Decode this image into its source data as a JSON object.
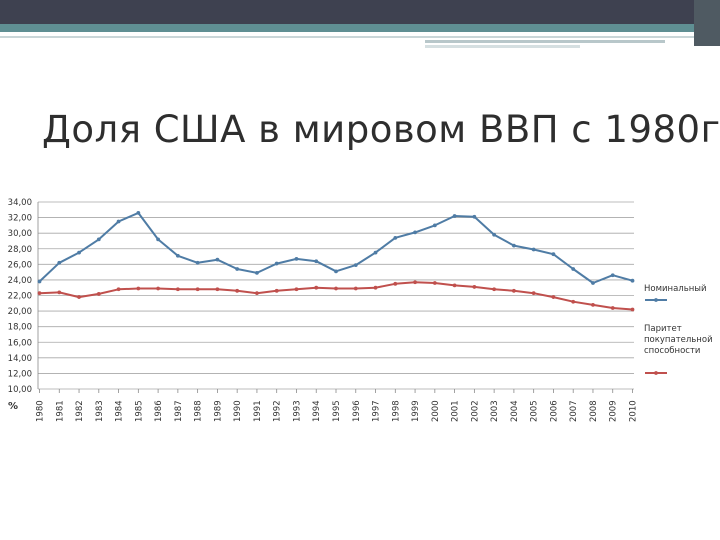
{
  "slide": {
    "title": "Доля США в мировом ВВП с 1980г"
  },
  "chart_data": {
    "type": "line",
    "title": "",
    "xlabel": "",
    "ylabel": "%",
    "ylim": [
      10,
      34
    ],
    "y_ticks": [
      "34,00",
      "32,00",
      "30,00",
      "28,00",
      "26,00",
      "24,00",
      "22,00",
      "20,00",
      "18,00",
      "16,00",
      "14,00",
      "12,00",
      "10,00"
    ],
    "x": [
      "1980",
      "1981",
      "1982",
      "1983",
      "1984",
      "1985",
      "1986",
      "1987",
      "1988",
      "1989",
      "1990",
      "1991",
      "1992",
      "1993",
      "1994",
      "1995",
      "1996",
      "1997",
      "1998",
      "1999",
      "2000",
      "2001",
      "2002",
      "2003",
      "2004",
      "2005",
      "2006",
      "2007",
      "2008",
      "2009",
      "2010"
    ],
    "grid": true,
    "legend_position": "right",
    "colors": {
      "nominal": "#4f7ca5",
      "ppp": "#c0504d"
    },
    "series": [
      {
        "name": "Номинальный",
        "values": [
          23.8,
          26.2,
          27.5,
          29.2,
          31.5,
          32.6,
          29.2,
          27.1,
          26.2,
          26.6,
          25.4,
          24.9,
          26.1,
          26.7,
          26.4,
          25.1,
          25.9,
          27.5,
          29.4,
          30.1,
          31.0,
          32.2,
          32.1,
          29.8,
          28.4,
          27.9,
          27.3,
          25.4,
          23.6,
          24.6,
          23.9
        ]
      },
      {
        "name": "Паритет покупательной способности",
        "values": [
          22.3,
          22.4,
          21.8,
          22.2,
          22.8,
          22.9,
          22.9,
          22.8,
          22.8,
          22.8,
          22.6,
          22.3,
          22.6,
          22.8,
          23.0,
          22.9,
          22.9,
          23.0,
          23.5,
          23.7,
          23.6,
          23.3,
          23.1,
          22.8,
          22.6,
          22.3,
          21.8,
          21.2,
          20.8,
          20.4,
          20.2
        ]
      }
    ]
  }
}
